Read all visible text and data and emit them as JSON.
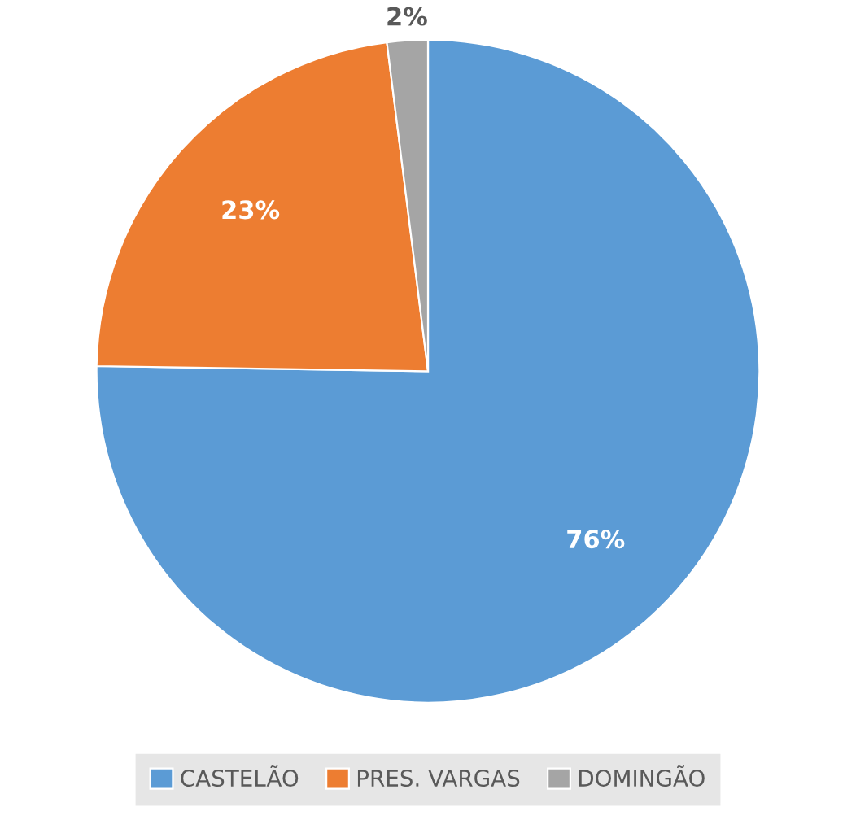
{
  "chart_data": {
    "type": "pie",
    "categories": [
      "CASTELÃO",
      "PRES. VARGAS",
      "DOMINGÃO"
    ],
    "values": [
      76,
      23,
      2
    ],
    "value_labels": [
      "76%",
      "23%",
      "2%"
    ],
    "colors": [
      "#5b9bd5",
      "#ed7d31",
      "#a5a5a5"
    ],
    "legend": "bottom"
  }
}
